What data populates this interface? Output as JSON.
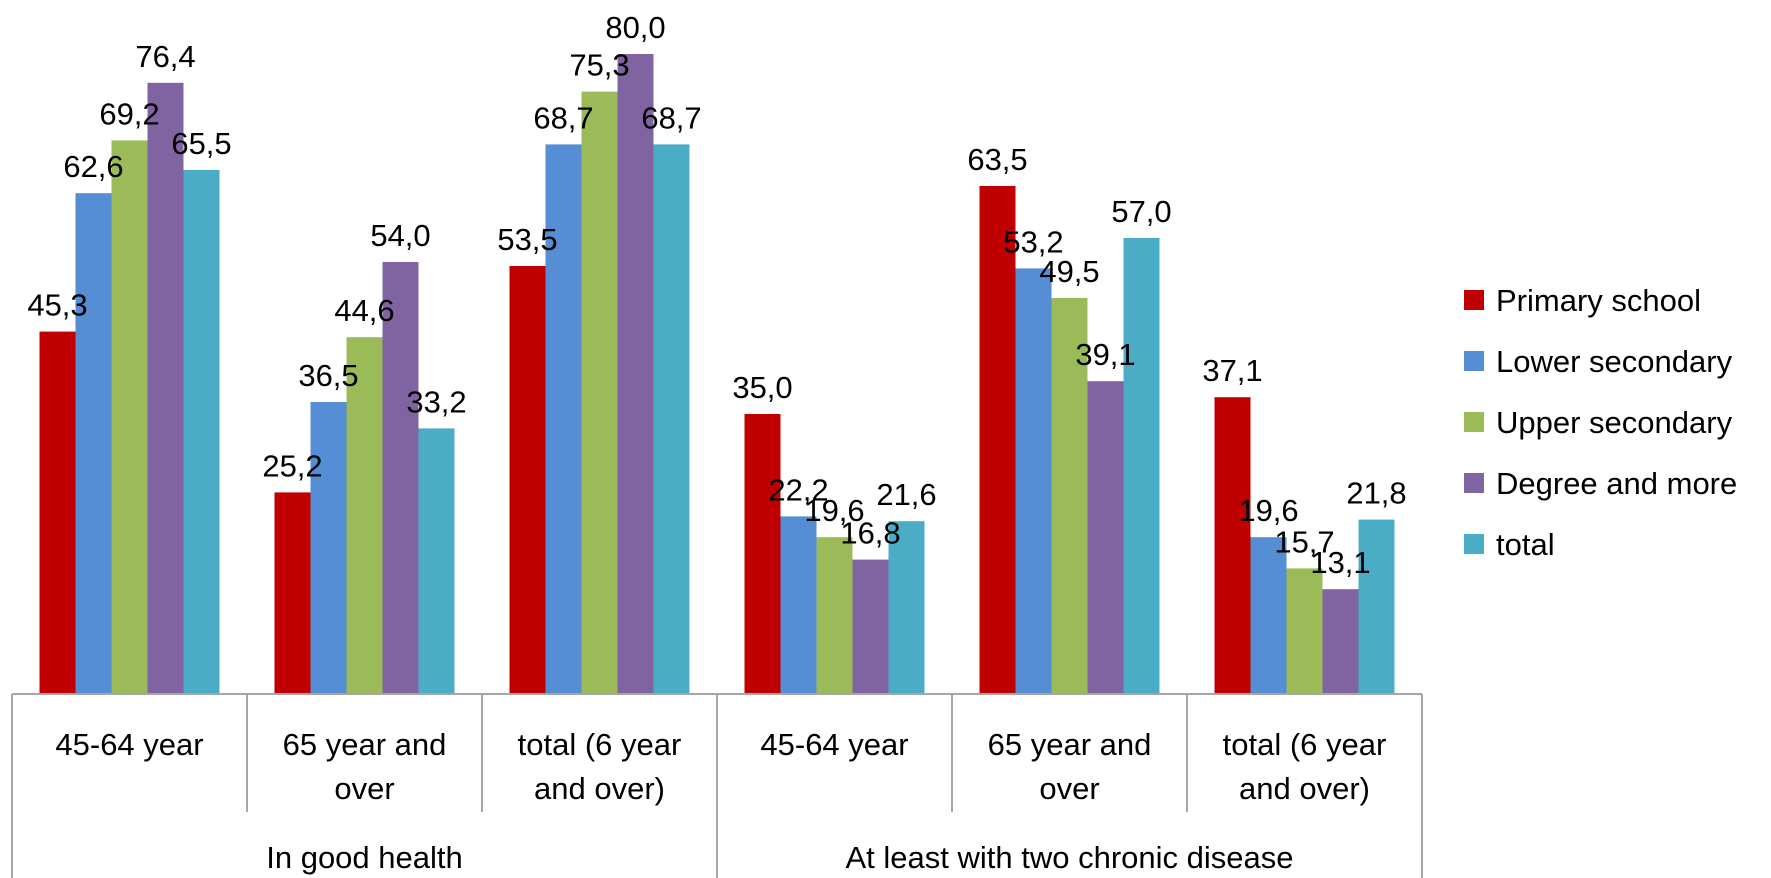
{
  "chart_data": {
    "type": "bar",
    "categories": [
      {
        "label": [
          "45-64 year"
        ],
        "group": 0
      },
      {
        "label": [
          "65 year and",
          "over"
        ],
        "group": 0
      },
      {
        "label": [
          "total (6 year",
          "and over)"
        ],
        "group": 0
      },
      {
        "label": [
          "45-64 year"
        ],
        "group": 1
      },
      {
        "label": [
          "65 year and",
          "over"
        ],
        "group": 1
      },
      {
        "label": [
          "total (6 year",
          "and over)"
        ],
        "group": 1
      }
    ],
    "groups": [
      "In good health",
      "At least with two chronic disease"
    ],
    "series": [
      {
        "name": "Primary school",
        "color": "#C00000",
        "values": [
          45.3,
          25.2,
          53.5,
          35.0,
          63.5,
          37.1
        ],
        "labels": [
          "45,3",
          "25,2",
          "53,5",
          "35,0",
          "63,5",
          "37,1"
        ]
      },
      {
        "name": "Lower secondary",
        "color": "#558ED5",
        "values": [
          62.6,
          36.5,
          68.7,
          22.2,
          53.2,
          19.6
        ],
        "labels": [
          "62,6",
          "36,5",
          "68,7",
          "22,2",
          "53,2",
          "19,6"
        ]
      },
      {
        "name": "Upper secondary",
        "color": "#9BBB59",
        "values": [
          69.2,
          44.6,
          75.3,
          19.6,
          49.5,
          15.7
        ],
        "labels": [
          "69,2",
          "44,6",
          "75,3",
          "19,6",
          "49,5",
          "15,7"
        ]
      },
      {
        "name": "Degree and more",
        "color": "#8064A2",
        "values": [
          76.4,
          54.0,
          80.0,
          16.8,
          39.1,
          13.1
        ],
        "labels": [
          "76,4",
          "54,0",
          "80,0",
          "16,8",
          "39,1",
          "13,1"
        ]
      },
      {
        "name": "total",
        "color": "#4BACC6",
        "values": [
          65.5,
          33.2,
          68.7,
          21.6,
          57.0,
          21.8
        ],
        "labels": [
          "65,5",
          "33,2",
          "68,7",
          "21,6",
          "57,0",
          "21,8"
        ]
      }
    ],
    "ylim": [
      0,
      80
    ],
    "grid": false,
    "legend": "right",
    "title": "",
    "xlabel": "",
    "ylabel": ""
  }
}
